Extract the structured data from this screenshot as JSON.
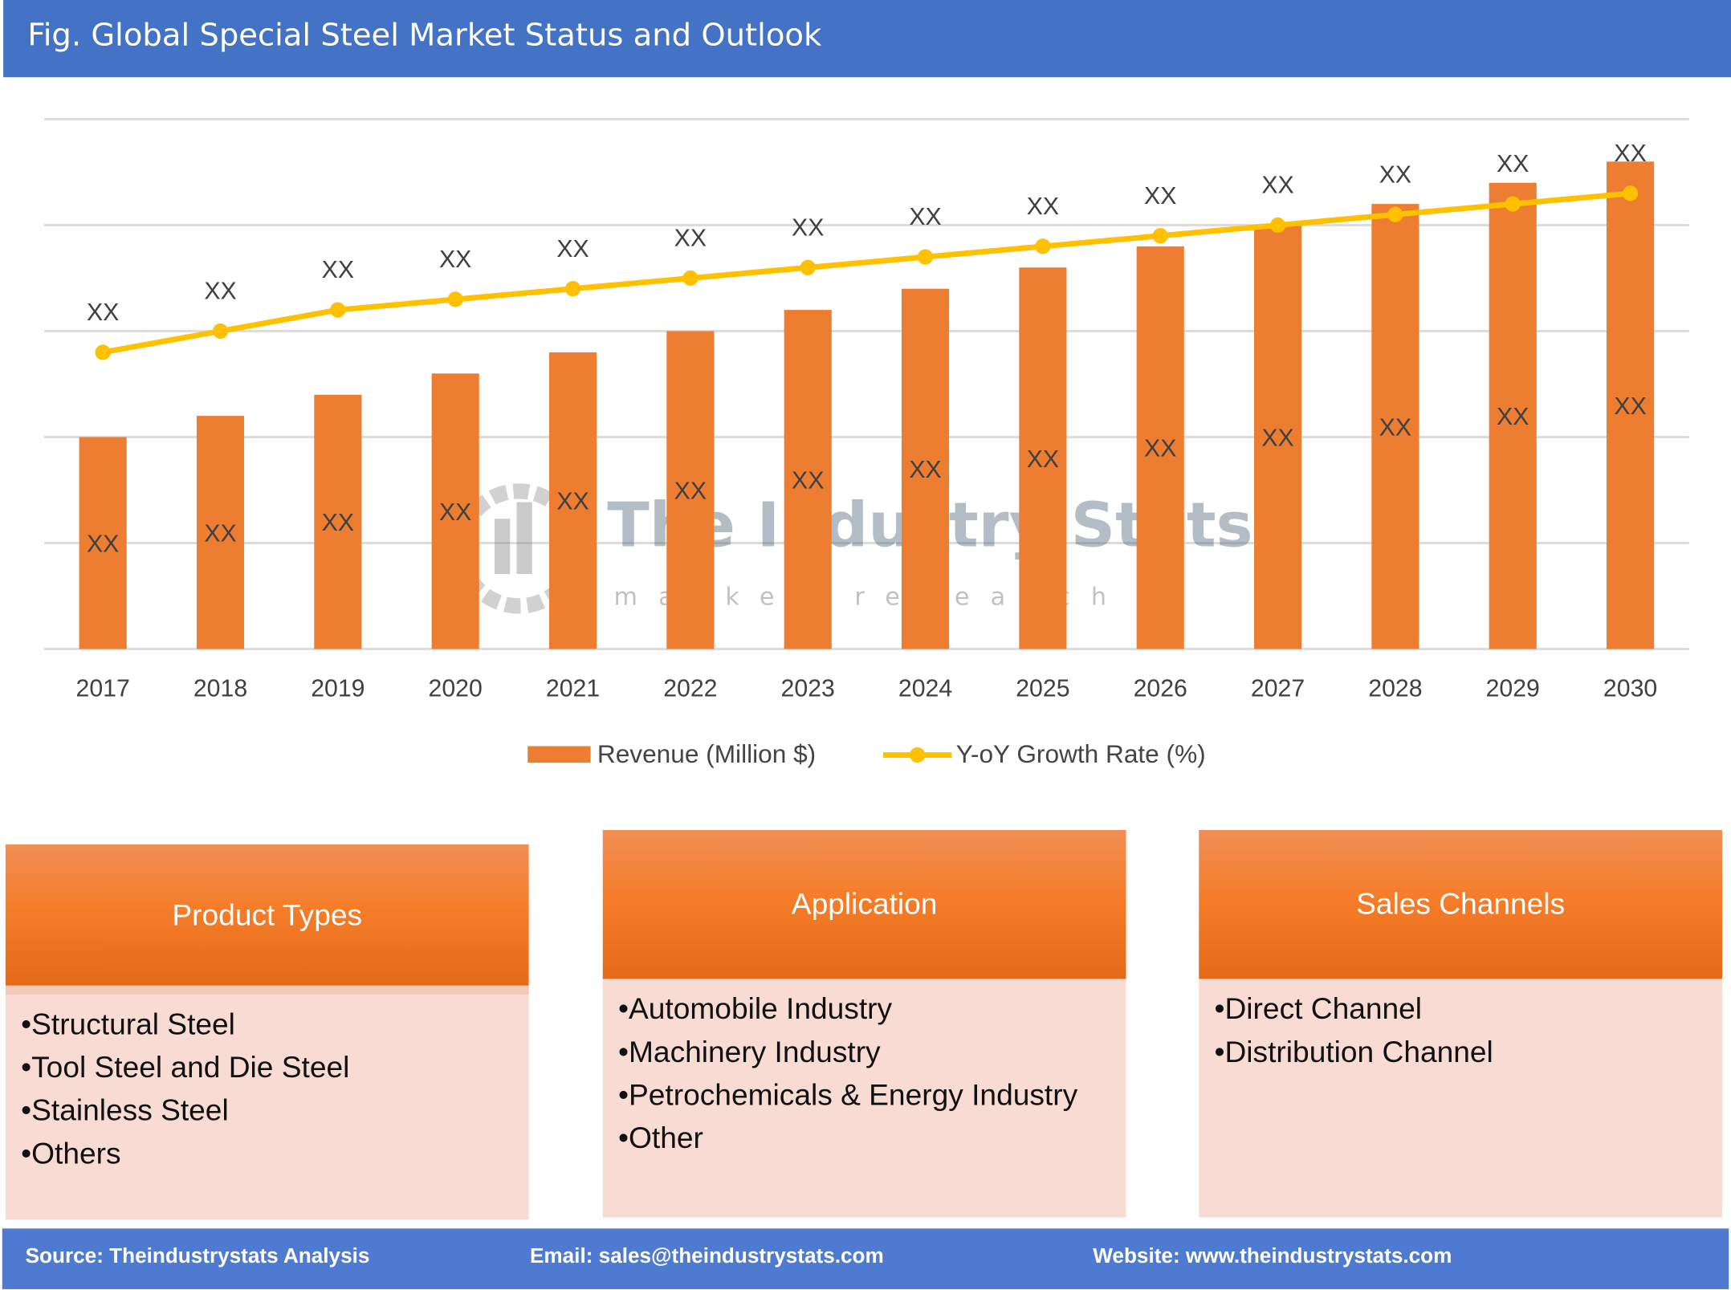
{
  "title": "Fig. Global Special Steel Market Status and Outlook",
  "chart_data": {
    "type": "bar+line",
    "categories": [
      "2017",
      "2018",
      "2019",
      "2020",
      "2021",
      "2022",
      "2023",
      "2024",
      "2025",
      "2026",
      "2027",
      "2028",
      "2029",
      "2030"
    ],
    "series": [
      {
        "name": "Revenue (Million $)",
        "type": "bar",
        "color": "#ed7d31",
        "values": [
          2.0,
          2.2,
          2.4,
          2.6,
          2.8,
          3.0,
          3.2,
          3.4,
          3.6,
          3.8,
          4.0,
          4.2,
          4.4,
          4.6
        ],
        "data_label": "XX"
      },
      {
        "name": "Y-oY Growth Rate (%)",
        "type": "line",
        "color": "#ffc000",
        "values": [
          2.8,
          3.0,
          3.2,
          3.3,
          3.4,
          3.5,
          3.6,
          3.7,
          3.8,
          3.9,
          4.0,
          4.1,
          4.2,
          4.3
        ],
        "data_label": "XX"
      }
    ],
    "ylim": [
      0,
      5
    ],
    "grid": true,
    "legend": "bottom",
    "note": "values are relative; axis values not printed"
  },
  "watermark": {
    "name": "The Industry Stats",
    "tagline": "market research"
  },
  "boxes": [
    {
      "title": "Product Types",
      "items": [
        "Structural Steel",
        "Tool Steel and Die Steel",
        "Stainless Steel",
        "Others"
      ]
    },
    {
      "title": "Application",
      "items": [
        "Automobile Industry",
        "Machinery Industry",
        "Petrochemicals & Energy Industry",
        "Other"
      ]
    },
    {
      "title": "Sales Channels",
      "items": [
        "Direct Channel",
        "Distribution Channel"
      ]
    }
  ],
  "footer": {
    "source": "Source: Theindustrystats Analysis",
    "email": "Email: sales@theindustrystats.com",
    "website": "Website: www.theindustrystats.com"
  }
}
